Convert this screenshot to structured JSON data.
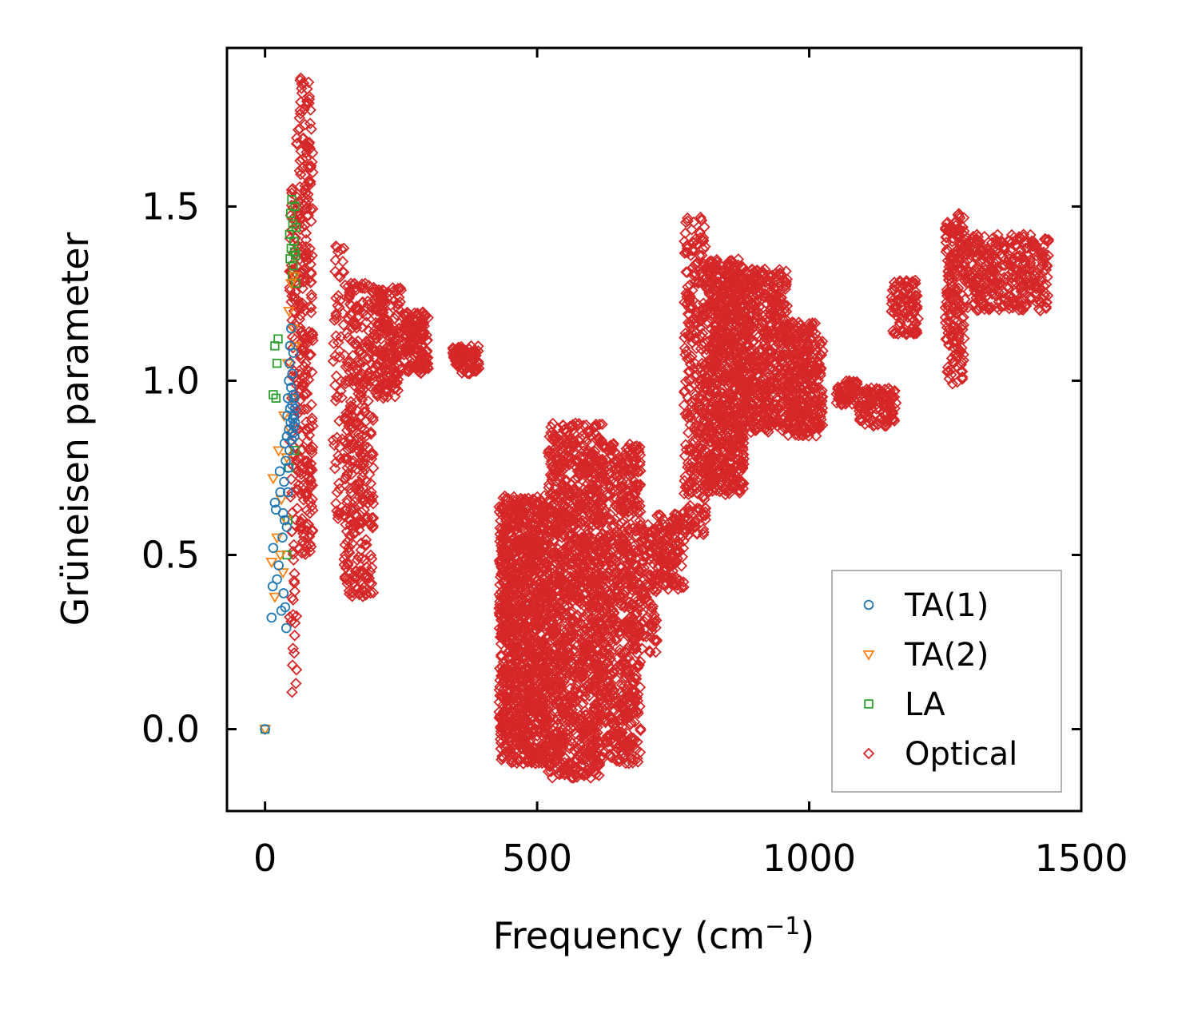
{
  "chart_data": {
    "type": "scatter",
    "title": "",
    "xlabel": "Frequency (cm",
    "xlabel_superscript": "−1",
    "xlabel_suffix": ")",
    "ylabel": "Grüneisen parameter",
    "xlim": [
      -70,
      1500
    ],
    "ylim": [
      -0.235,
      1.955
    ],
    "x_ticks": [
      0,
      500,
      1000,
      1500
    ],
    "x_tick_labels": [
      "0",
      "500",
      "1000",
      "1500"
    ],
    "y_ticks": [
      0.0,
      0.5,
      1.0,
      1.5
    ],
    "y_tick_labels": [
      "0.0",
      "0.5",
      "1.0",
      "1.5"
    ],
    "grid": false,
    "legend_position": "lower-right",
    "series": [
      {
        "name": "TA(1)",
        "marker": "circle",
        "color": "#1f77b4",
        "x": [
          0,
          12,
          14,
          15,
          18,
          20,
          22,
          25,
          27,
          28,
          30,
          32,
          33,
          34,
          35,
          36,
          36,
          37,
          38,
          39,
          40,
          40,
          41,
          42,
          42,
          43,
          44,
          44,
          45,
          45,
          46,
          46,
          47,
          48,
          48,
          49,
          50,
          50,
          51,
          51,
          52,
          52,
          53,
          53,
          54,
          54,
          55,
          55
        ],
        "y": [
          0.0,
          0.32,
          0.41,
          0.52,
          0.65,
          0.63,
          0.43,
          0.47,
          0.74,
          0.68,
          0.34,
          0.55,
          0.62,
          0.39,
          0.71,
          0.6,
          0.82,
          0.35,
          0.77,
          0.29,
          0.84,
          0.58,
          0.9,
          0.68,
          0.95,
          0.75,
          1.0,
          0.86,
          1.05,
          0.8,
          0.92,
          1.1,
          0.88,
          1.15,
          0.98,
          0.83,
          0.93,
          1.02,
          0.89,
          0.85,
          0.96,
          1.08,
          0.9,
          0.87,
          0.95,
          0.84,
          0.92,
          0.88
        ]
      },
      {
        "name": "TA(2)",
        "marker": "triangle-down",
        "color": "#ff7f0e",
        "x": [
          0,
          12,
          15,
          18,
          22,
          25,
          28,
          30,
          33,
          35,
          38,
          40,
          42,
          44,
          46,
          48,
          50,
          52,
          54,
          55
        ],
        "y": [
          0.0,
          0.48,
          0.72,
          0.38,
          0.55,
          0.8,
          0.5,
          0.66,
          0.45,
          0.9,
          0.6,
          0.78,
          1.05,
          1.2,
          0.86,
          1.28,
          0.95,
          1.15,
          1.3,
          1.1
        ]
      },
      {
        "name": "LA",
        "marker": "square",
        "color": "#2ca02c",
        "x": [
          0,
          15,
          18,
          20,
          22,
          24,
          40,
          42,
          44,
          45,
          46,
          47,
          48,
          49,
          50,
          51,
          52,
          53,
          54,
          55,
          55,
          56,
          56,
          57
        ],
        "y": [
          0.0,
          0.96,
          1.1,
          0.95,
          1.05,
          1.12,
          0.5,
          0.6,
          0.75,
          1.42,
          1.35,
          1.48,
          1.38,
          1.52,
          1.3,
          1.45,
          1.33,
          1.4,
          1.37,
          0.8,
          1.5,
          1.28,
          1.36,
          1.44
        ]
      },
      {
        "name": "Optical",
        "marker": "diamond",
        "color": "#d62728",
        "bands": [
          {
            "x0": 45,
            "x1": 55,
            "y0": 0.3,
            "y1": 1.6,
            "n": 60
          },
          {
            "x0": 45,
            "x1": 58,
            "y0": 0.07,
            "y1": 0.4,
            "n": 10
          },
          {
            "x0": 55,
            "x1": 88,
            "y0": 0.5,
            "y1": 1.87,
            "n": 300
          },
          {
            "x0": 125,
            "x1": 145,
            "y0": 0.6,
            "y1": 1.39,
            "n": 60
          },
          {
            "x0": 145,
            "x1": 200,
            "y0": 0.38,
            "y1": 1.28,
            "n": 350
          },
          {
            "x0": 200,
            "x1": 250,
            "y0": 0.95,
            "y1": 1.27,
            "n": 200
          },
          {
            "x0": 255,
            "x1": 300,
            "y0": 1.02,
            "y1": 1.2,
            "n": 150
          },
          {
            "x0": 345,
            "x1": 395,
            "y0": 1.02,
            "y1": 1.1,
            "n": 80
          },
          {
            "x0": 430,
            "x1": 520,
            "y0": -0.1,
            "y1": 0.67,
            "n": 1200
          },
          {
            "x0": 520,
            "x1": 620,
            "y0": -0.14,
            "y1": 0.88,
            "n": 1300
          },
          {
            "x0": 620,
            "x1": 690,
            "y0": -0.1,
            "y1": 0.82,
            "n": 700
          },
          {
            "x0": 690,
            "x1": 720,
            "y0": 0.22,
            "y1": 0.6,
            "n": 100
          },
          {
            "x0": 720,
            "x1": 770,
            "y0": 0.4,
            "y1": 0.62,
            "n": 150
          },
          {
            "x0": 770,
            "x1": 810,
            "y0": 0.55,
            "y1": 1.47,
            "n": 300
          },
          {
            "x0": 810,
            "x1": 880,
            "y0": 0.67,
            "y1": 1.35,
            "n": 800
          },
          {
            "x0": 880,
            "x1": 960,
            "y0": 0.85,
            "y1": 1.32,
            "n": 500
          },
          {
            "x0": 960,
            "x1": 1025,
            "y0": 0.84,
            "y1": 1.17,
            "n": 350
          },
          {
            "x0": 1050,
            "x1": 1090,
            "y0": 0.93,
            "y1": 1.0,
            "n": 60
          },
          {
            "x0": 1090,
            "x1": 1160,
            "y0": 0.87,
            "y1": 0.98,
            "n": 120
          },
          {
            "x0": 1150,
            "x1": 1200,
            "y0": 1.13,
            "y1": 1.29,
            "n": 100
          },
          {
            "x0": 1250,
            "x1": 1285,
            "y0": 0.99,
            "y1": 1.48,
            "n": 200
          },
          {
            "x0": 1285,
            "x1": 1440,
            "y0": 1.2,
            "y1": 1.42,
            "n": 350
          }
        ]
      }
    ]
  }
}
